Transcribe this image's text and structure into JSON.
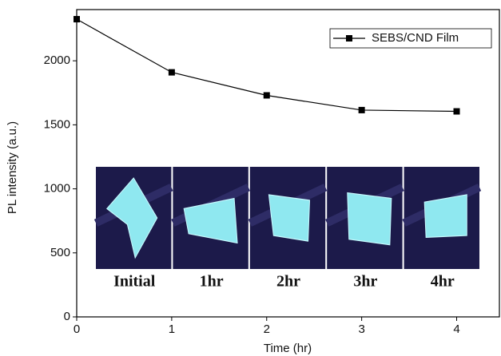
{
  "chart_data": {
    "type": "line",
    "x_label": "Time (hr)",
    "y_label": "PL intensity (a.u.)",
    "x": [
      0,
      1,
      2,
      3,
      4
    ],
    "series": [
      {
        "name": "SEBS/CND Film",
        "color": "#000000",
        "values": [
          2325,
          1910,
          1730,
          1615,
          1605
        ]
      }
    ],
    "xlim": [
      0,
      4.45
    ],
    "xticks": [
      0,
      1,
      2,
      3,
      4
    ],
    "ylim": [
      0,
      2400
    ],
    "yticks": [
      0,
      500,
      1000,
      1500,
      2000
    ],
    "legend": "upper right",
    "annotations": [
      "Initial",
      "1hr",
      "2hr",
      "3hr",
      "4hr"
    ]
  }
}
